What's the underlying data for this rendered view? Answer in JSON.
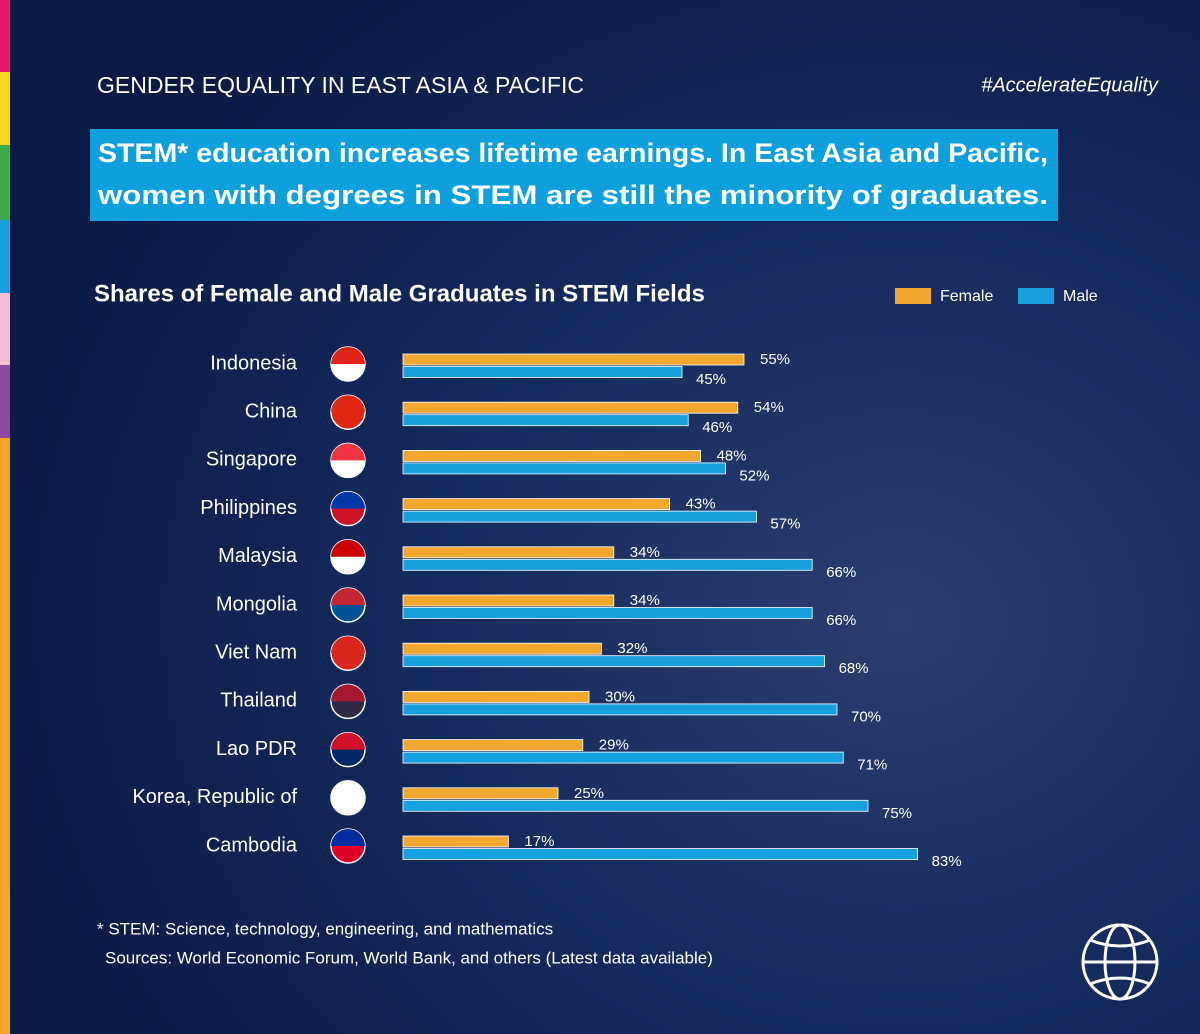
{
  "header": {
    "kicker": "GENDER EQUALITY IN EAST ASIA & PACIFIC",
    "hashtag": "#AccelerateEquality",
    "headline": [
      "STEM* education increases lifetime earnings. In East Asia and Pacific,",
      "women with degrees in STEM are still the minority of graduates."
    ]
  },
  "chart_data": {
    "type": "bar",
    "orientation": "horizontal",
    "title": "Shares of Female and Male Graduates in STEM Fields",
    "categories": [
      "Indonesia",
      "China",
      "Singapore",
      "Philippines",
      "Malaysia",
      "Mongolia",
      "Viet Nam",
      "Thailand",
      "Lao PDR",
      "Korea, Republic of",
      "Cambodia"
    ],
    "series": [
      {
        "name": "Female",
        "color": "#f2a72e",
        "values": [
          55,
          54,
          48,
          43,
          34,
          34,
          32,
          30,
          29,
          25,
          17
        ],
        "value_labels": [
          "55%",
          "54%",
          "48%",
          "43%",
          "34%",
          "34%",
          "32%",
          "30%",
          "29%",
          "25%",
          "17%"
        ]
      },
      {
        "name": "Male",
        "color": "#16a0dd",
        "values": [
          45,
          46,
          52,
          57,
          66,
          66,
          68,
          70,
          71,
          75,
          83
        ],
        "value_labels": [
          "45%",
          "46%",
          "52%",
          "57%",
          "66%",
          "66%",
          "68%",
          "70%",
          "71%",
          "75%",
          "83%"
        ]
      }
    ]
  },
  "notes": [
    "* STEM: Science, technology, engineering, and mathematics",
    "Sources: World Economic Forum, World Bank, and others (Latest data available)"
  ]
}
